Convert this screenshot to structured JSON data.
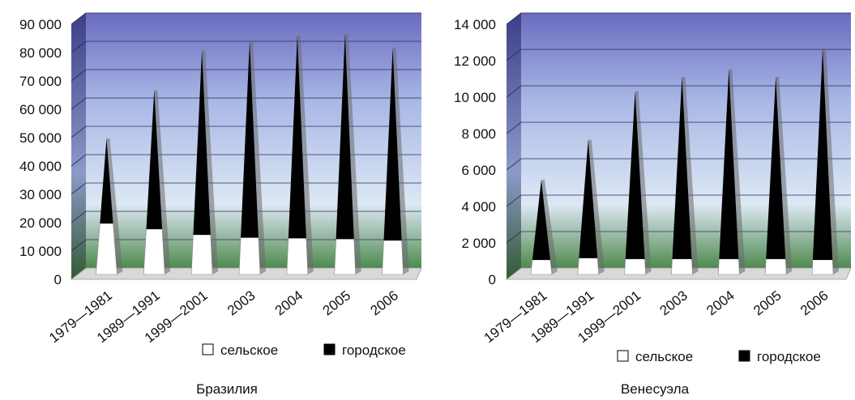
{
  "chart_data": [
    {
      "type": "bar",
      "stacked": true,
      "title": "Бразилия",
      "categories": [
        "1979—1981",
        "1989—1991",
        "1999—2001",
        "2003",
        "2004",
        "2005",
        "2006"
      ],
      "yticks": [
        "0",
        "10 000",
        "20 000",
        "30 000",
        "40 000",
        "50 000",
        "60 000",
        "70 000",
        "80 000",
        "90 000"
      ],
      "ylim": [
        0,
        90000
      ],
      "series": [
        {
          "name": "сельское",
          "color": "#ffffff",
          "values": [
            18000,
            16000,
            14000,
            13000,
            12800,
            12500,
            12000
          ]
        },
        {
          "name": "городское",
          "color": "#000000",
          "values": [
            30000,
            49000,
            65000,
            69000,
            71500,
            72500,
            68000
          ]
        }
      ],
      "legend": "bottom-right",
      "grid": true
    },
    {
      "type": "bar",
      "stacked": true,
      "title": "Венесуэла",
      "categories": [
        "1979—1981",
        "1989—1991",
        "1999—2001",
        "2003",
        "2004",
        "2005",
        "2006"
      ],
      "yticks": [
        "0",
        "2 000",
        "4 000",
        "6 000",
        "8 000",
        "10 000",
        "12 000",
        "14 000"
      ],
      "ylim": [
        0,
        14000
      ],
      "series": [
        {
          "name": "сельское",
          "color": "#ffffff",
          "values": [
            800,
            900,
            850,
            850,
            850,
            850,
            800
          ]
        },
        {
          "name": "городское",
          "color": "#000000",
          "values": [
            4400,
            6500,
            9200,
            10000,
            10400,
            10000,
            11600
          ]
        }
      ],
      "legend": "bottom-right",
      "grid": true
    }
  ]
}
